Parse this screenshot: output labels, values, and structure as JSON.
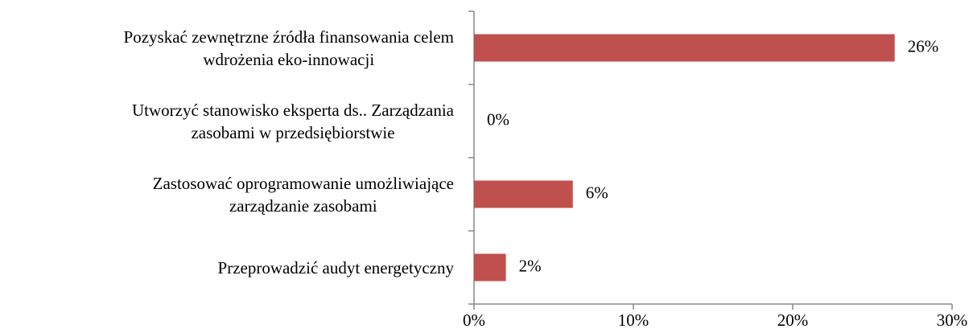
{
  "chart_data": {
    "type": "bar",
    "orientation": "horizontal",
    "categories": [
      "Pozyskać zewnętrzne źródła finansowania celem\nwdrożenia eko-innowacji",
      "Utworzyć stanowisko eksperta ds.. Zarządzania\nzasobami w przedsiębiorstwie",
      "Zastosować oprogramowanie umożliwiające\nzarządzanie zasobami",
      "Przeprowadzić audyt energetyczny"
    ],
    "values": [
      26.4,
      0,
      6.2,
      2
    ],
    "value_labels": [
      "26%",
      "0%",
      "6%",
      "2%"
    ],
    "color": "#c0504d",
    "xlim": [
      0,
      30
    ],
    "xticks": [
      {
        "value": 0,
        "label": "0%"
      },
      {
        "value": 10,
        "label": "10%"
      },
      {
        "value": 20,
        "label": "20%"
      },
      {
        "value": 30,
        "label": "30%"
      }
    ]
  }
}
